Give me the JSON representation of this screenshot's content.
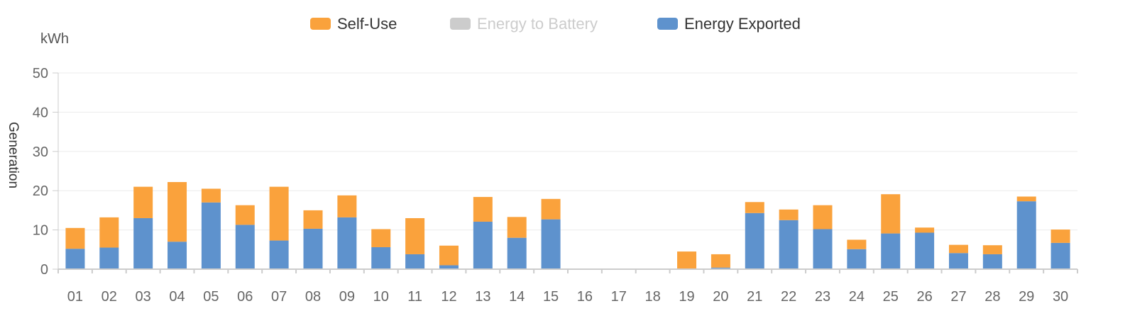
{
  "chart_data": {
    "type": "bar",
    "stacked": true,
    "unit": "kWh",
    "ylabel": "Generation",
    "xlabel": "",
    "ylim": [
      0,
      50
    ],
    "yticks": [
      0,
      10,
      20,
      30,
      40,
      50
    ],
    "grid": true,
    "legend_position": "top-center",
    "categories": [
      "01",
      "02",
      "03",
      "04",
      "05",
      "06",
      "07",
      "08",
      "09",
      "10",
      "11",
      "12",
      "13",
      "14",
      "15",
      "16",
      "17",
      "18",
      "19",
      "20",
      "21",
      "22",
      "23",
      "24",
      "25",
      "26",
      "27",
      "28",
      "29",
      "30"
    ],
    "series": [
      {
        "name": "Self-Use",
        "color": "#FAA23C",
        "enabled": true,
        "values": [
          5.3,
          7.7,
          8.0,
          15.2,
          3.5,
          5.0,
          13.7,
          4.7,
          5.6,
          4.6,
          9.2,
          5.0,
          6.3,
          5.3,
          5.2,
          0,
          0,
          0,
          4.5,
          3.4,
          2.8,
          2.7,
          6.1,
          2.4,
          10.0,
          1.3,
          2.1,
          2.3,
          1.2,
          3.4
        ]
      },
      {
        "name": "Energy to Battery",
        "color": "#CCCCCC",
        "enabled": false,
        "values": [
          0,
          0,
          0,
          0,
          0,
          0,
          0,
          0,
          0,
          0,
          0,
          0,
          0,
          0,
          0,
          0,
          0,
          0,
          0,
          0,
          0,
          0,
          0,
          0,
          0,
          0,
          0,
          0,
          0,
          0
        ]
      },
      {
        "name": "Energy Exported",
        "color": "#5E92CD",
        "enabled": true,
        "values": [
          5.2,
          5.5,
          13.0,
          7.0,
          17.0,
          11.3,
          7.3,
          10.3,
          13.2,
          5.6,
          3.8,
          1.0,
          12.1,
          8.0,
          12.7,
          0,
          0,
          0,
          0,
          0.4,
          14.3,
          12.5,
          10.2,
          5.1,
          9.1,
          9.3,
          4.1,
          3.8,
          17.3,
          6.7
        ]
      }
    ]
  }
}
